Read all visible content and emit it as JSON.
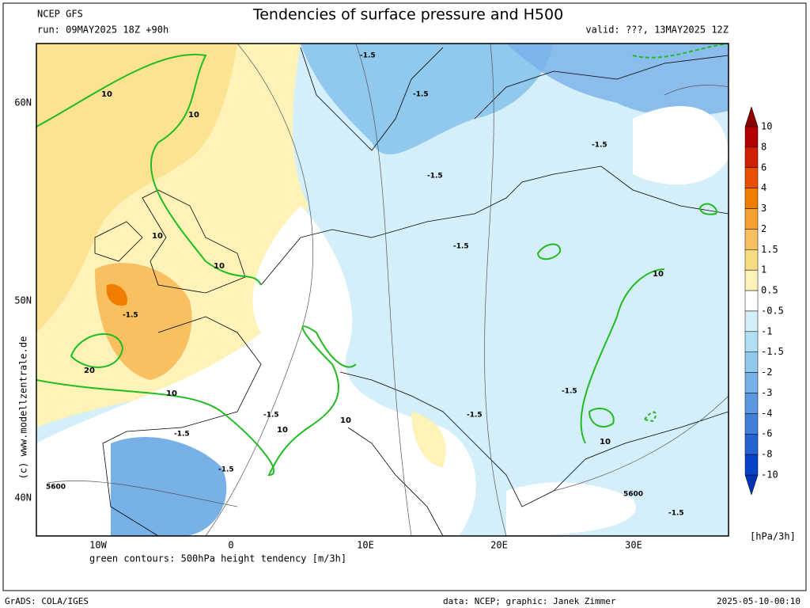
{
  "header": {
    "left_top": "NCEP GFS",
    "title": "Tendencies of surface pressure and H500",
    "run": "run: 09MAY2025 18Z +90h",
    "valid": "valid: ???, 13MAY2025 12Z"
  },
  "lat_labels": [
    "60N",
    "50N",
    "40N"
  ],
  "lon_labels": [
    "10W",
    "0",
    "10E",
    "20E",
    "30E"
  ],
  "caption": "green contours: 500hPa height tendency [m/3h]",
  "copyright": "(c) www.modellzentrale.de",
  "colorbar": {
    "levels": [
      10,
      8,
      6,
      4,
      3,
      2,
      1.5,
      1,
      0.5,
      -0.5,
      -1,
      -1.5,
      -2,
      -3,
      -4,
      -6,
      -8,
      -10
    ],
    "colors": [
      "#b40000",
      "#d21e00",
      "#e85000",
      "#f07d00",
      "#f5a030",
      "#f8c060",
      "#fadc80",
      "#fdf3b8",
      "#ffffff",
      "#d4eefa",
      "#b0def4",
      "#90c8ee",
      "#78b0e8",
      "#5c98e0",
      "#4080d8",
      "#2462d0",
      "#0844c8"
    ],
    "top_color": "#8b0000",
    "bottom_color": "#0032b4",
    "unit": "[hPa/3h]"
  },
  "contour_labels": [
    "-1.5",
    "10",
    "20",
    "5600"
  ],
  "footer": {
    "left": "GrADS: COLA/IGES",
    "data": "data: NCEP; graphic: Janek Zimmer",
    "date": "2025-05-10-00:10"
  }
}
